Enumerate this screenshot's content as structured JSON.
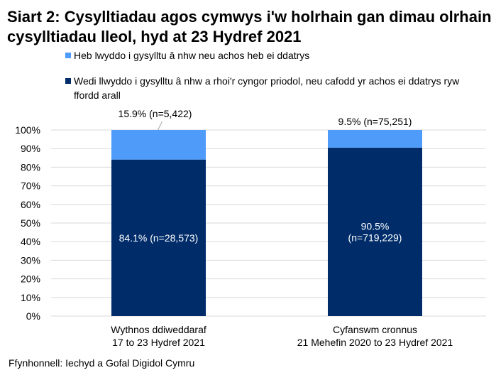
{
  "chart_data": {
    "type": "bar",
    "stacked": true,
    "title": "Siart 2: Cysylltiadau agos cymwys i'w holrhain gan dimau olrhain cysylltiadau lleol, hyd at 23 Hydref 2021",
    "categories": [
      [
        "Wythnos ddiweddaraf",
        "17 to 23 Hydref 2021"
      ],
      [
        "Cyfanswm cronnus",
        "21 Mehefin 2020 to 23 Hydref 2021"
      ]
    ],
    "series": [
      {
        "name": "Wedi llwyddo i gysylltu â nhw a rhoi'r cyngor priodol, neu cafodd yr achos ei ddatrys ryw ffordd arall",
        "values": [
          84.1,
          90.5
        ],
        "labels": [
          [
            "84.1% (n=28,573)"
          ],
          [
            "90.5%",
            "(n=719,229)"
          ]
        ],
        "color": "#002D6A"
      },
      {
        "name": "Heb lwyddo i gysylltu â nhw neu achos heb ei ddatrys",
        "values": [
          15.9,
          9.5
        ],
        "labels": [
          [
            "15.9% (n=5,422)"
          ],
          [
            "9.5% (n=75,251)"
          ]
        ],
        "color": "#4F9BFA"
      }
    ],
    "yticks": [
      "0%",
      "10%",
      "20%",
      "30%",
      "40%",
      "50%",
      "60%",
      "70%",
      "80%",
      "90%",
      "100%"
    ],
    "ylim": [
      0,
      100
    ],
    "grid": true,
    "legend": "top"
  },
  "source": "Ffynhonnell: Iechyd a Gofal Digidol Cymru"
}
